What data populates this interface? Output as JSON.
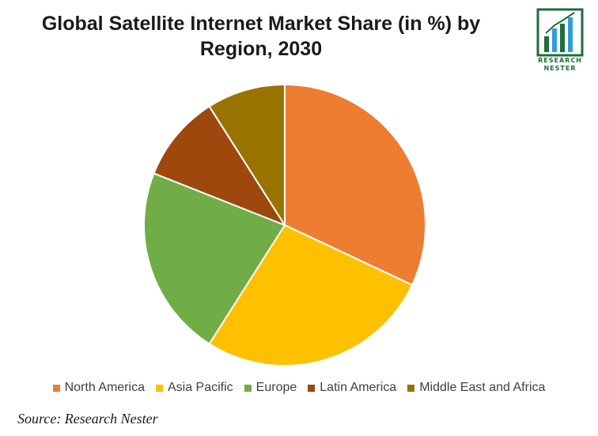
{
  "chart_data": {
    "type": "pie",
    "title": "Global Satellite Internet Market Share (in %) by Region, 2030",
    "title_lines": [
      "Global Satellite Internet Market Share (in %) by",
      "Region, 2030"
    ],
    "start_angle": "12 o'clock",
    "direction": "clockwise",
    "legend_position": "bottom",
    "slices": [
      {
        "label": "North America",
        "value": 32,
        "color": "#ED7D31"
      },
      {
        "label": "Asia Pacific",
        "value": 27,
        "color": "#FFC000"
      },
      {
        "label": "Europe",
        "value": 22,
        "color": "#70AD47"
      },
      {
        "label": "Latin America",
        "value": 10,
        "color": "#9E480E"
      },
      {
        "label": "Middle East and Africa",
        "value": 9,
        "color": "#997300"
      }
    ]
  },
  "logo": {
    "line1": "RESEARCH",
    "line2": "NESTER",
    "icon": "bar-chart-logo-icon",
    "color": "#1f6d3a"
  },
  "source": "Source: Research Nester"
}
